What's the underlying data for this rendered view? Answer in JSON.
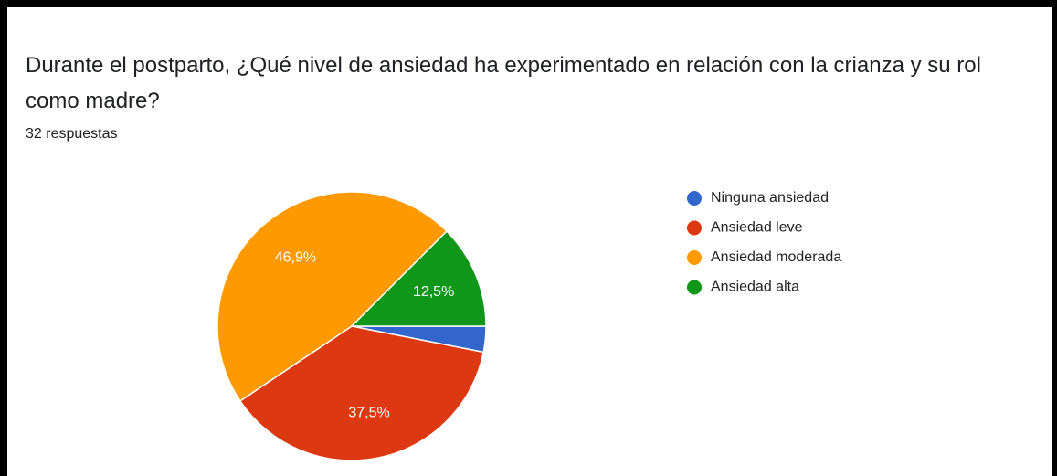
{
  "header": {
    "title_line1": "Durante el postparto, ¿Qué nivel de ansiedad ha experimentado en relación con la crianza y su rol",
    "title_line2": "como madre?",
    "responses": "32 respuestas"
  },
  "chart_data": {
    "type": "pie",
    "categories": [
      "Ninguna ansiedad",
      "Ansiedad leve",
      "Ansiedad moderada",
      "Ansiedad alta"
    ],
    "values": [
      3.1,
      37.5,
      46.9,
      12.5
    ],
    "value_labels": [
      null,
      "37,5%",
      "46,9%",
      "12,5%"
    ],
    "colors": [
      "#3366cc",
      "#dc3912",
      "#ff9900",
      "#109618"
    ],
    "legend": "right"
  }
}
